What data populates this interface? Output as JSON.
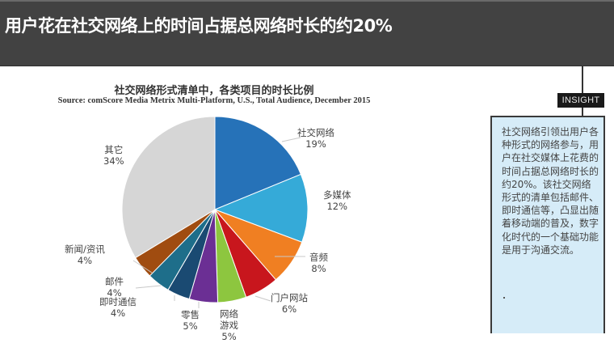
{
  "header": {
    "title": "用户花在社交网络上的时间占据总网络时长的约20%"
  },
  "chart": {
    "title": "社交网络形式清单中，各类项目的时长比例",
    "source": "Source: comScore Media Metrix Multi-Platform,  U.S., Total Audience, December 2015"
  },
  "insight": {
    "tag": "INSIGHT",
    "text": "社交网络引领出用户各种形式的网络参与，用户在社交媒体上花费的时间占据总网络时长的约20%。该社交网络形式的清单包括邮件、即时通信等，凸显出随着移动端的普及，数字化时代的一个基础功能是用于沟通交流。"
  },
  "labels": [
    {
      "name": "社交网络",
      "pct": "19%"
    },
    {
      "name": "多媒体",
      "pct": "12%"
    },
    {
      "name": "音频",
      "pct": "8%"
    },
    {
      "name": "门户网站",
      "pct": "6%"
    },
    {
      "name": "网络\n游戏",
      "pct": "5%"
    },
    {
      "name": "零售",
      "pct": "5%"
    },
    {
      "name": "即时通信",
      "pct": "4%"
    },
    {
      "name": "邮件",
      "pct": "4%"
    },
    {
      "name": "新闻/资讯",
      "pct": "4%"
    },
    {
      "name": "其它",
      "pct": "34%"
    }
  ],
  "chart_data": {
    "type": "pie",
    "title": "社交网络形式清单中，各类项目的时长比例",
    "subtitle": "Source: comScore Media Metrix Multi-Platform,  U.S., Total Audience, December 2015",
    "categories": [
      "社交网络",
      "多媒体",
      "音频",
      "门户网站",
      "网络游戏",
      "零售",
      "即时通信",
      "邮件",
      "新闻/资讯",
      "其它"
    ],
    "values": [
      19,
      12,
      8,
      6,
      5,
      5,
      4,
      4,
      4,
      34
    ],
    "colors": [
      "#2672b8",
      "#35aad8",
      "#f07f22",
      "#c8161d",
      "#8dc63f",
      "#6b2f94",
      "#1a4a72",
      "#1e6e8a",
      "#a04c10",
      "#d6d6d6"
    ],
    "start_angle_deg": 0,
    "direction": "clockwise",
    "legend_position": "data-labels outside"
  }
}
